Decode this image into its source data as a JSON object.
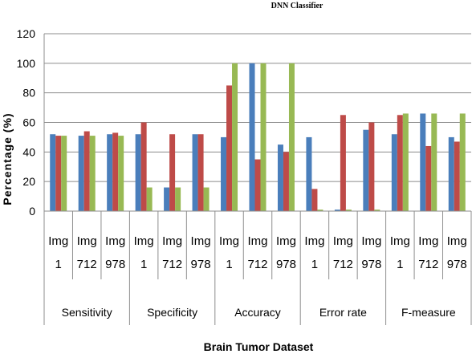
{
  "chart_data": {
    "type": "bar",
    "title": "DNN Classifier",
    "xlabel": "Brain Tumor Dataset",
    "ylabel": "Percentage (%)",
    "ylim": [
      0,
      120
    ],
    "yticks": [
      0,
      20,
      40,
      60,
      80,
      100,
      120
    ],
    "grid": true,
    "colors": [
      "#4a7ebb",
      "#be4b48",
      "#98b954"
    ],
    "groups": [
      {
        "name": "Sensitivity",
        "categories": [
          {
            "line1": "Img",
            "line2": "1",
            "values": [
              52,
              51,
              51
            ]
          },
          {
            "line1": "Img",
            "line2": "712",
            "values": [
              51,
              54,
              51
            ]
          },
          {
            "line1": "Img",
            "line2": "978",
            "values": [
              52,
              53,
              51
            ]
          }
        ]
      },
      {
        "name": "Specificity",
        "categories": [
          {
            "line1": "Img",
            "line2": "1",
            "values": [
              52,
              60,
              16
            ]
          },
          {
            "line1": "Img",
            "line2": "712",
            "values": [
              16,
              52,
              16
            ]
          },
          {
            "line1": "Img",
            "line2": "978",
            "values": [
              52,
              52,
              16
            ]
          }
        ]
      },
      {
        "name": "Accuracy",
        "categories": [
          {
            "line1": "Img",
            "line2": "1",
            "values": [
              50,
              85,
              100
            ]
          },
          {
            "line1": "Img",
            "line2": "712",
            "values": [
              100,
              35,
              100
            ]
          },
          {
            "line1": "Img",
            "line2": "978",
            "values": [
              45,
              40,
              100
            ]
          }
        ]
      },
      {
        "name": "Error rate",
        "categories": [
          {
            "line1": "Img",
            "line2": "1",
            "values": [
              50,
              15,
              1
            ]
          },
          {
            "line1": "Img",
            "line2": "712",
            "values": [
              1,
              65,
              1
            ]
          },
          {
            "line1": "Img",
            "line2": "978",
            "values": [
              55,
              60,
              1
            ]
          }
        ]
      },
      {
        "name": "F-measure",
        "categories": [
          {
            "line1": "Img",
            "line2": "1",
            "values": [
              52,
              65,
              66
            ]
          },
          {
            "line1": "Img",
            "line2": "712",
            "values": [
              66,
              44,
              66
            ]
          },
          {
            "line1": "Img",
            "line2": "978",
            "values": [
              50,
              47,
              66
            ]
          }
        ]
      }
    ]
  }
}
